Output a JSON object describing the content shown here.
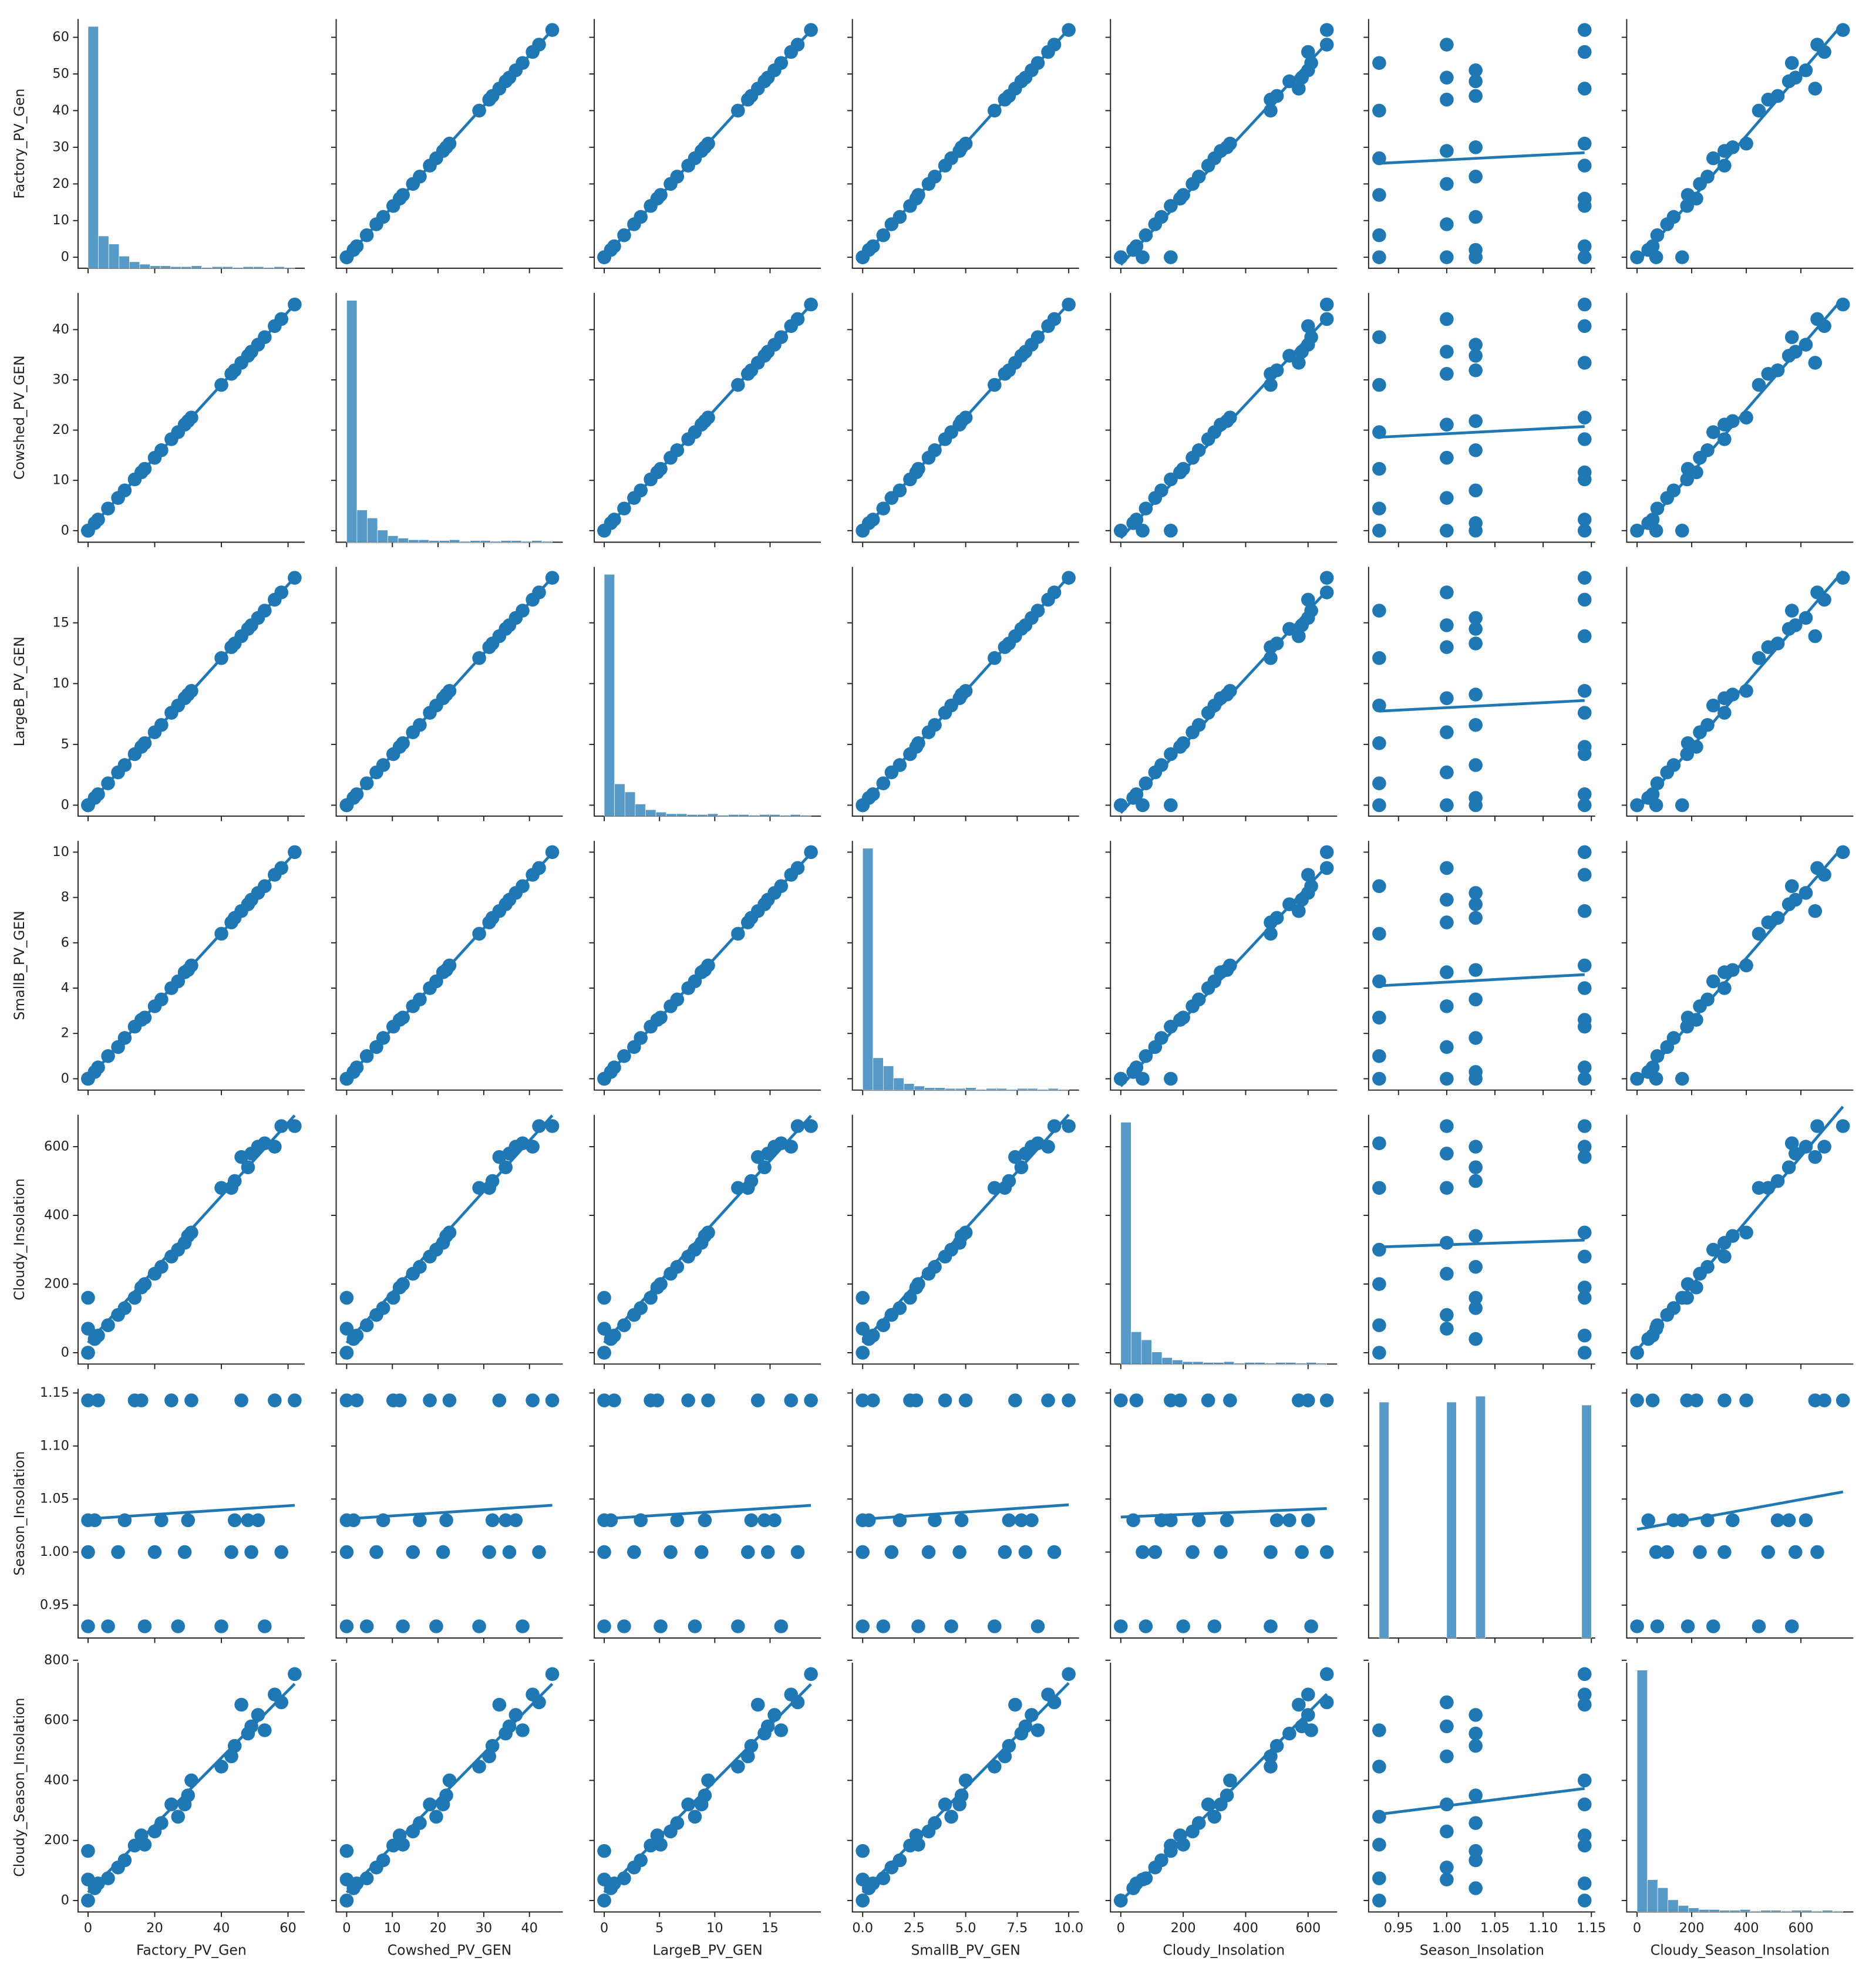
{
  "chart_data": {
    "type": "pairplot",
    "color": "#1f77b4",
    "variables": [
      {
        "name": "Factory_PV_Gen",
        "lim": [
          -3,
          65
        ],
        "yticks": [
          0,
          10,
          20,
          30,
          40,
          50,
          60
        ],
        "xticks": [
          0,
          20,
          40,
          60
        ],
        "hist": {
          "bins": [
            0,
            3.1,
            6.2,
            9.3,
            12.4,
            15.5,
            18.6,
            21.7,
            24.8,
            27.9,
            31,
            34.1,
            37.2,
            40.3,
            43.4,
            46.5,
            49.6,
            52.7,
            55.8,
            58.9,
            62
          ],
          "counts": [
            300,
            40,
            30,
            15,
            8,
            5,
            3,
            3,
            2,
            2,
            3,
            1,
            2,
            2,
            1,
            2,
            2,
            1,
            2,
            1
          ]
        }
      },
      {
        "name": "Cowshed_PV_GEN",
        "lim": [
          -2.3,
          47.3
        ],
        "yticks": [
          0,
          10,
          20,
          30,
          40
        ],
        "xticks": [
          0,
          10,
          20,
          30,
          40
        ],
        "hist": {
          "bins": [
            0,
            2.25,
            4.5,
            6.75,
            9,
            11.25,
            13.5,
            15.75,
            18,
            20.25,
            22.5,
            24.75,
            27,
            29.25,
            31.5,
            33.75,
            36,
            38.25,
            40.5,
            42.75,
            45
          ],
          "counts": [
            300,
            40,
            30,
            15,
            8,
            5,
            3,
            3,
            2,
            2,
            3,
            1,
            2,
            2,
            1,
            2,
            2,
            1,
            2,
            1
          ]
        }
      },
      {
        "name": "LargeB_PV_GEN",
        "lim": [
          -0.9,
          19.6
        ],
        "yticks": [
          0,
          5,
          10,
          15
        ],
        "xticks": [
          0,
          5,
          10,
          15
        ],
        "hist": {
          "bins": [
            0,
            0.935,
            1.87,
            2.805,
            3.74,
            4.675,
            5.61,
            6.545,
            7.48,
            8.415,
            9.35,
            10.285,
            11.22,
            12.155,
            13.09,
            14.025,
            14.96,
            15.895,
            16.83,
            17.765,
            18.7
          ],
          "counts": [
            300,
            40,
            30,
            15,
            8,
            5,
            3,
            3,
            2,
            2,
            3,
            1,
            2,
            2,
            1,
            2,
            2,
            1,
            2,
            1
          ]
        }
      },
      {
        "name": "SmallB_PV_GEN",
        "lim": [
          -0.5,
          10.5
        ],
        "yticks": [
          0,
          2,
          4,
          6,
          8,
          10
        ],
        "xticks": [
          {
            "value": 0,
            "label": "0.0"
          },
          {
            "value": 2.5,
            "label": "2.5"
          },
          {
            "value": 5,
            "label": "5.0"
          },
          {
            "value": 7.5,
            "label": "7.5"
          },
          {
            "value": 10,
            "label": "10.0"
          }
        ],
        "hist": {
          "bins": [
            0,
            0.5,
            1,
            1.5,
            2,
            2.5,
            3,
            3.5,
            4,
            4.5,
            5,
            5.5,
            6,
            6.5,
            7,
            7.5,
            8,
            8.5,
            9,
            9.5,
            10
          ],
          "counts": [
            300,
            40,
            30,
            15,
            8,
            5,
            3,
            3,
            2,
            2,
            3,
            1,
            2,
            2,
            1,
            2,
            2,
            1,
            2,
            1
          ]
        }
      },
      {
        "name": "Cloudy_Insolation",
        "lim": [
          -33,
          693
        ],
        "yticks": [
          0,
          200,
          400,
          600
        ],
        "xticks": [
          0,
          200,
          400,
          600
        ],
        "hist": {
          "bins": [
            0,
            33,
            66,
            99,
            132,
            165,
            198,
            231,
            264,
            297,
            330,
            363,
            396,
            429,
            462,
            495,
            528,
            561,
            594,
            627,
            660
          ],
          "counts": [
            300,
            40,
            30,
            15,
            8,
            5,
            3,
            3,
            2,
            2,
            3,
            1,
            2,
            2,
            1,
            2,
            2,
            1,
            2,
            1
          ]
        }
      },
      {
        "name": "Season_Insolation",
        "lim": [
          0.919,
          1.154
        ],
        "yticks": [
          0.95,
          {
            "value": 1,
            "label": "1.00"
          },
          1.05,
          {
            "value": 1.1,
            "label": "1.10"
          },
          1.15
        ],
        "xticks": [
          0.95,
          {
            "value": 1,
            "label": "1.00"
          },
          1.05,
          {
            "value": 1.1,
            "label": "1.10"
          },
          1.15
        ],
        "hist": {
          "bins": [
            0.93,
            0.94,
            0.95,
            0.96,
            0.97,
            0.98,
            0.99,
            1.0,
            1.01,
            1.02,
            1.03,
            1.04,
            1.05,
            1.06,
            1.07,
            1.08,
            1.09,
            1.1,
            1.11,
            1.12,
            1.13,
            1.14,
            1.15
          ],
          "counts": [
            80,
            0,
            0,
            0,
            0,
            0,
            0,
            80,
            0,
            0,
            82,
            0,
            0,
            0,
            0,
            0,
            0,
            0,
            0,
            0,
            0,
            79
          ]
        }
      },
      {
        "name": "Cloudy_Season_Insolation",
        "lim": [
          -38,
          792
        ],
        "yticks": [
          0,
          200,
          400,
          600,
          800
        ],
        "xticks": [
          0,
          200,
          400,
          600
        ],
        "hist": {
          "bins": [
            0,
            37.7,
            75.4,
            113.1,
            150.8,
            188.5,
            226.2,
            263.9,
            301.6,
            339.3,
            377,
            414.7,
            452.4,
            490.1,
            527.8,
            565.5,
            603.2,
            640.9,
            678.6,
            716.3,
            754
          ],
          "counts": [
            300,
            40,
            30,
            15,
            8,
            5,
            3,
            3,
            2,
            2,
            3,
            1,
            2,
            2,
            1,
            2,
            2,
            1,
            2,
            1
          ]
        }
      }
    ],
    "observations": [
      [
        0,
        0,
        0,
        0,
        0,
        0.93,
        0
      ],
      [
        0,
        0,
        0,
        0,
        0,
        1.143,
        0
      ],
      [
        0,
        0,
        0,
        0,
        160,
        1.03,
        165
      ],
      [
        0,
        0,
        0,
        0,
        70,
        1.0,
        70
      ],
      [
        3,
        2.2,
        0.9,
        0.5,
        50,
        1.143,
        57
      ],
      [
        6,
        4.4,
        1.8,
        1.0,
        80,
        0.93,
        74
      ],
      [
        9,
        6.5,
        2.7,
        1.4,
        110,
        1.0,
        110
      ],
      [
        11,
        8.0,
        3.3,
        1.8,
        130,
        1.03,
        134
      ],
      [
        14,
        10.2,
        4.2,
        2.3,
        160,
        1.143,
        183
      ],
      [
        17,
        12.3,
        5.1,
        2.7,
        200,
        0.93,
        186
      ],
      [
        20,
        14.5,
        6.0,
        3.2,
        230,
        1.0,
        230
      ],
      [
        22,
        16.0,
        6.6,
        3.5,
        250,
        1.03,
        258
      ],
      [
        25,
        18.2,
        7.6,
        4.0,
        280,
        1.143,
        320
      ],
      [
        27,
        19.6,
        8.2,
        4.3,
        300,
        0.93,
        279
      ],
      [
        29,
        21.1,
        8.8,
        4.7,
        320,
        1.0,
        320
      ],
      [
        30,
        21.8,
        9.1,
        4.8,
        340,
        1.03,
        350
      ],
      [
        31,
        22.5,
        9.4,
        5.0,
        350,
        1.143,
        400
      ],
      [
        40,
        29.0,
        12.1,
        6.4,
        480,
        0.93,
        446
      ],
      [
        43,
        31.2,
        13.0,
        6.9,
        480,
        1.0,
        480
      ],
      [
        44,
        31.9,
        13.3,
        7.1,
        500,
        1.03,
        515
      ],
      [
        46,
        33.4,
        13.9,
        7.4,
        570,
        1.143,
        652
      ],
      [
        49,
        35.6,
        14.8,
        7.9,
        580,
        1.0,
        580
      ],
      [
        51,
        37.0,
        15.4,
        8.2,
        600,
        1.03,
        618
      ],
      [
        53,
        38.5,
        16.0,
        8.5,
        610,
        0.93,
        567
      ],
      [
        56,
        40.7,
        16.9,
        9.0,
        600,
        1.143,
        686
      ],
      [
        58,
        42.1,
        17.5,
        9.3,
        660,
        1.0,
        660
      ],
      [
        62,
        45.0,
        18.7,
        10.0,
        660,
        1.143,
        754
      ],
      [
        2,
        1.5,
        0.6,
        0.3,
        40,
        1.03,
        41
      ],
      [
        16,
        11.6,
        4.8,
        2.6,
        190,
        1.143,
        217
      ],
      [
        48,
        34.8,
        14.5,
        7.7,
        540,
        1.03,
        556
      ]
    ]
  }
}
